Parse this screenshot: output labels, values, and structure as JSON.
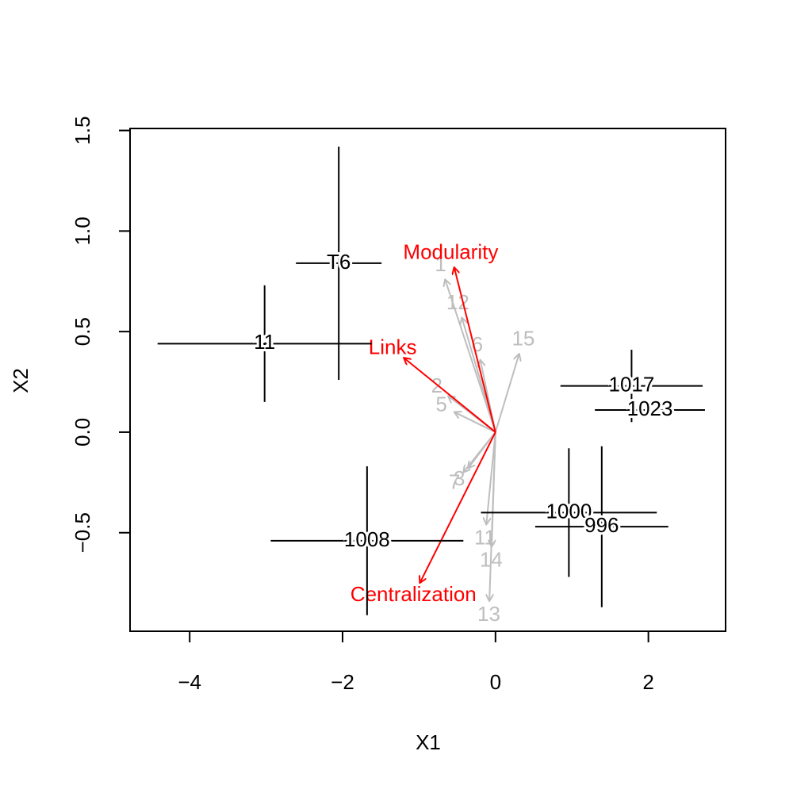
{
  "chart_data": {
    "type": "biplot",
    "xlabel": "X1",
    "ylabel": "X2",
    "xlim": [
      -4.78,
      3.01
    ],
    "ylim": [
      -0.99,
      1.51
    ],
    "xticks": [
      {
        "value": -4,
        "label": "−4"
      },
      {
        "value": -2,
        "label": "−2"
      },
      0,
      2
    ],
    "yticks": [
      {
        "value": -0.5,
        "label": "−0.5"
      },
      {
        "value": 0,
        "label": "0.0"
      },
      0.5,
      {
        "value": 1,
        "label": "1.0"
      },
      1.5
    ],
    "points": {
      "color": "#000000",
      "labels": [
        "T6",
        "11",
        "1017",
        "1023",
        "1000",
        "996",
        "1008"
      ],
      "x": [
        -2.05,
        -3.02,
        1.78,
        2.02,
        0.96,
        1.39,
        -1.68
      ],
      "y": [
        0.84,
        0.44,
        0.23,
        0.11,
        -0.4,
        -0.47,
        -0.54
      ],
      "x_err": [
        0.56,
        1.4,
        0.93,
        0.72,
        1.15,
        0.87,
        1.26
      ],
      "y_err": [
        0.58,
        0.29,
        0.18,
        0.03,
        0.32,
        0.4,
        0.37
      ]
    },
    "loadings": [
      {
        "color": "#bebebe",
        "labels": [
          "1",
          "12",
          "6",
          "15",
          "2",
          "5",
          "7",
          "3",
          "11",
          "14",
          "13"
        ],
        "x": [
          -0.66,
          -0.44,
          -0.2,
          0.31,
          -0.62,
          -0.54,
          -0.42,
          -0.36,
          -0.12,
          -0.05,
          -0.08
        ],
        "y": [
          0.76,
          0.57,
          0.36,
          0.39,
          0.18,
          0.1,
          -0.2,
          -0.18,
          -0.46,
          -0.57,
          -0.84
        ]
      },
      {
        "color": "#ff0000",
        "labels": [
          "Modularity",
          "Links",
          "Centralization"
        ],
        "x": [
          -0.54,
          -1.2,
          -0.99
        ],
        "y": [
          0.82,
          0.37,
          -0.75
        ]
      }
    ]
  }
}
